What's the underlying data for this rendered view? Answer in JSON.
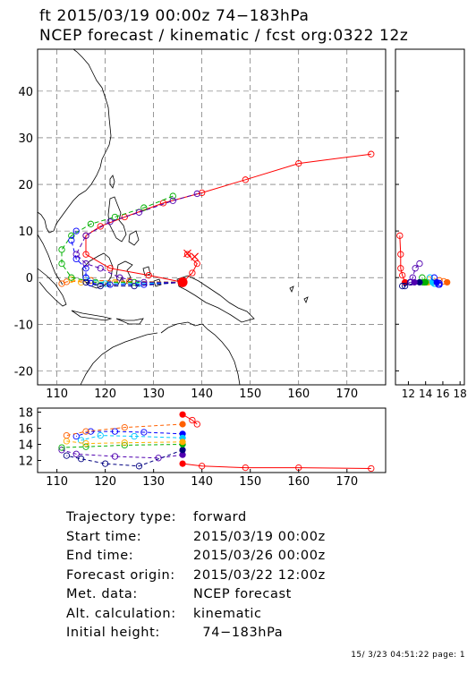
{
  "header": {
    "line1": "ft 2015/03/19 00:00z  74−183hPa",
    "line2": "NCEP forecast / kinematic / fcst org:0322 12z"
  },
  "info": [
    {
      "label": "Trajectory type:",
      "value": "forward"
    },
    {
      "label": "Start time:",
      "value": "2015/03/19 00:00z"
    },
    {
      "label": "End time:",
      "value": "2015/03/26 00:00z"
    },
    {
      "label": "Forecast origin:",
      "value": "2015/03/22 12:00z"
    },
    {
      "label": "Met. data:",
      "value": "NCEP forecast"
    },
    {
      "label": "Alt. calculation:",
      "value": "kinematic"
    },
    {
      "label": "Initial height:",
      "value": "  74−183hPa"
    }
  ],
  "footer": "15/ 3/23 04:51:22 page: 1",
  "chart_data": [
    {
      "type": "line",
      "panel": "map",
      "xlim": [
        106,
        178
      ],
      "ylim": [
        -23,
        49
      ],
      "xticks": [
        110,
        120,
        130,
        140,
        150,
        160,
        170
      ],
      "yticks": [
        -20,
        -10,
        0,
        10,
        20,
        30,
        40
      ],
      "grid": true,
      "series": [
        {
          "color": "#ff0000",
          "points": [
            [
              136,
              -1
            ],
            [
              129,
              0.5
            ],
            [
              121,
              2
            ],
            [
              116,
              5
            ],
            [
              116,
              9
            ],
            [
              119,
              11
            ],
            [
              124,
              13
            ],
            [
              132,
              16
            ],
            [
              140,
              18.2
            ],
            [
              149,
              21
            ],
            [
              160,
              24.5
            ],
            [
              175,
              26.5
            ]
          ]
        },
        {
          "color": "#ff0000",
          "points": [
            [
              136,
              -1
            ],
            [
              138,
              1
            ],
            [
              139,
              3
            ],
            [
              137,
              5
            ]
          ]
        },
        {
          "color": "#ff6000",
          "points": [
            [
              136,
              -1
            ],
            [
              125,
              -0.8
            ],
            [
              117,
              -0.6
            ],
            [
              112,
              -0.9
            ],
            [
              111,
              -1.3
            ]
          ]
        },
        {
          "color": "#ffb000",
          "points": [
            [
              136,
              -1
            ],
            [
              122,
              -1
            ],
            [
              115,
              -1
            ],
            [
              113,
              -0.4
            ]
          ]
        },
        {
          "color": "#00b000",
          "points": [
            [
              136,
              -1
            ],
            [
              126,
              -1
            ],
            [
              118,
              -1
            ],
            [
              113,
              0
            ],
            [
              111,
              3
            ],
            [
              111,
              6
            ],
            [
              113,
              9
            ],
            [
              117,
              11.5
            ],
            [
              122,
              13
            ],
            [
              128,
              15
            ],
            [
              134,
              17.5
            ]
          ]
        },
        {
          "color": "#00c8ff",
          "points": [
            [
              136,
              -1
            ],
            [
              127,
              -1.3
            ],
            [
              120,
              -1.3
            ],
            [
              116,
              0
            ]
          ]
        },
        {
          "color": "#0000ff",
          "points": [
            [
              136,
              -1
            ],
            [
              128,
              -1.5
            ],
            [
              121,
              -1.5
            ],
            [
              117,
              -1.2
            ],
            [
              116,
              0
            ],
            [
              116,
              2
            ],
            [
              114,
              4
            ],
            [
              113,
              8
            ],
            [
              114,
              10
            ]
          ]
        },
        {
          "color": "#000080",
          "points": [
            [
              136,
              -1
            ],
            [
              126,
              -1.8
            ],
            [
              119,
              -1.8
            ],
            [
              116,
              -1
            ]
          ]
        },
        {
          "color": "#5000b0",
          "points": [
            [
              136,
              -1
            ],
            [
              128,
              -1
            ],
            [
              123,
              0
            ],
            [
              119,
              2
            ],
            [
              116,
              3
            ],
            [
              114,
              5
            ],
            [
              116,
              9
            ],
            [
              121,
              12
            ],
            [
              127,
              14
            ],
            [
              134,
              16.5
            ],
            [
              139,
              18
            ]
          ]
        }
      ],
      "markers": [
        {
          "label": "start",
          "x": 136,
          "y": -1,
          "color": "#ff0000"
        },
        {
          "label": "x",
          "x": 137,
          "y": 5.2,
          "color": "#ff0000"
        },
        {
          "label": "x",
          "x": 138.5,
          "y": 4.5,
          "color": "#ff0000"
        }
      ]
    },
    {
      "type": "line",
      "panel": "bottom-height",
      "xlim": [
        106,
        178
      ],
      "ylim": [
        10.5,
        18.5
      ],
      "xticks": [
        110,
        120,
        130,
        140,
        150,
        160,
        170
      ],
      "yticks": [
        12,
        14,
        16,
        18
      ],
      "series": [
        {
          "color": "#ff0000",
          "points": [
            [
              136,
              17.7
            ],
            [
              138,
              17
            ],
            [
              139,
              16.5
            ]
          ]
        },
        {
          "color": "#ff0000",
          "points": [
            [
              136,
              11.6
            ],
            [
              140,
              11.3
            ],
            [
              149,
              11.1
            ],
            [
              160,
              11.1
            ],
            [
              175,
              11.0
            ]
          ]
        },
        {
          "color": "#5000b0",
          "points": [
            [
              136,
              12.7
            ],
            [
              131,
              12.3
            ],
            [
              122,
              12.5
            ],
            [
              114,
              12.8
            ],
            [
              111,
              13.3
            ]
          ]
        },
        {
          "color": "#000080",
          "points": [
            [
              136,
              13.3
            ],
            [
              127,
              11.3
            ],
            [
              120,
              11.6
            ],
            [
              115,
              12.2
            ],
            [
              112,
              12.6
            ]
          ]
        },
        {
          "color": "#0000ff",
          "points": [
            [
              136,
              15.3
            ],
            [
              128,
              15.5
            ],
            [
              122,
              15.6
            ],
            [
              117,
              15.6
            ],
            [
              114,
              15
            ]
          ]
        },
        {
          "color": "#00c8ff",
          "points": [
            [
              136,
              14.8
            ],
            [
              126,
              15
            ],
            [
              119,
              15.1
            ],
            [
              115,
              14.5
            ]
          ]
        },
        {
          "color": "#00b000",
          "points": [
            [
              136,
              14
            ],
            [
              124,
              13.9
            ],
            [
              116,
              13.7
            ],
            [
              111,
              13.6
            ]
          ]
        },
        {
          "color": "#ffb000",
          "points": [
            [
              136,
              14.3
            ],
            [
              124,
              14.2
            ],
            [
              116,
              14.1
            ],
            [
              112,
              14.4
            ]
          ]
        },
        {
          "color": "#ff6000",
          "points": [
            [
              136,
              16.5
            ],
            [
              124,
              16.1
            ],
            [
              116,
              15.6
            ],
            [
              112,
              15.1
            ]
          ]
        }
      ]
    },
    {
      "type": "line",
      "panel": "right-height",
      "xlim": [
        10.5,
        18.5
      ],
      "xticks": [
        12,
        14,
        16,
        18
      ]
    }
  ]
}
